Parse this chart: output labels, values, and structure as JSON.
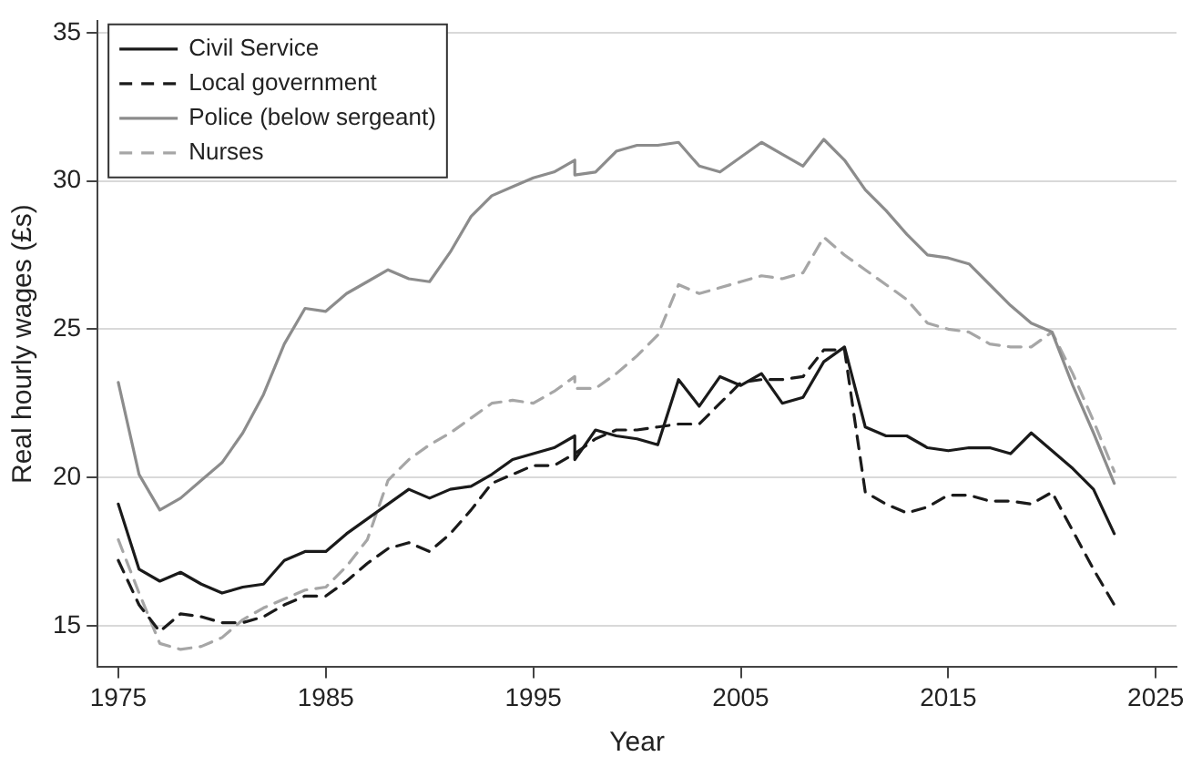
{
  "chart_data": {
    "type": "line",
    "xlabel": "Year",
    "ylabel": "Real hourly wages (£s)",
    "xlim": [
      1974,
      2026
    ],
    "ylim": [
      13.6,
      35.4
    ],
    "xticks": [
      1975,
      1985,
      1995,
      2005,
      2015,
      2025
    ],
    "yticks": [
      15,
      20,
      25,
      30,
      35
    ],
    "grid": "y",
    "legend": "top left",
    "marker": "none",
    "series": [
      {
        "name": "Civil Service",
        "color": "#1a1a1a",
        "line_style": "solid",
        "x": [
          1975,
          1976,
          1977,
          1978,
          1979,
          1980,
          1981,
          1982,
          1983,
          1984,
          1985,
          1986,
          1987,
          1988,
          1989,
          1990,
          1991,
          1992,
          1993,
          1994,
          1995,
          1996,
          1997,
          1997,
          1998,
          1999,
          2000,
          2001,
          2002,
          2003,
          2004,
          2005,
          2006,
          2007,
          2008,
          2009,
          2010,
          2011,
          2012,
          2013,
          2014,
          2015,
          2016,
          2017,
          2018,
          2019,
          2020,
          2021,
          2022,
          2023
        ],
        "values": [
          19.1,
          16.9,
          16.5,
          16.8,
          16.4,
          16.1,
          16.3,
          16.4,
          17.2,
          17.5,
          17.5,
          18.1,
          18.6,
          19.1,
          19.6,
          19.3,
          19.6,
          19.7,
          20.1,
          20.6,
          20.8,
          21.0,
          21.4,
          20.6,
          21.6,
          21.4,
          21.3,
          21.1,
          23.3,
          22.4,
          23.4,
          23.1,
          23.5,
          22.5,
          22.7,
          23.9,
          24.4,
          21.7,
          21.4,
          21.4,
          21.0,
          20.9,
          21.0,
          21.0,
          20.8,
          21.5,
          20.9,
          20.3,
          19.6,
          18.1
        ]
      },
      {
        "name": "Local government",
        "color": "#1a1a1a",
        "line_style": "dashed",
        "x": [
          1975,
          1976,
          1977,
          1978,
          1979,
          1980,
          1981,
          1982,
          1983,
          1984,
          1985,
          1986,
          1987,
          1988,
          1989,
          1990,
          1991,
          1992,
          1993,
          1994,
          1995,
          1996,
          1997,
          1998,
          1999,
          2000,
          2001,
          2002,
          2003,
          2004,
          2005,
          2006,
          2007,
          2008,
          2009,
          2010,
          2011,
          2012,
          2013,
          2014,
          2015,
          2016,
          2017,
          2018,
          2019,
          2020,
          2021,
          2022,
          2023
        ],
        "values": [
          17.2,
          15.7,
          14.8,
          15.4,
          15.3,
          15.1,
          15.1,
          15.3,
          15.7,
          16.0,
          16.0,
          16.5,
          17.1,
          17.6,
          17.8,
          17.5,
          18.1,
          18.9,
          19.8,
          20.1,
          20.4,
          20.4,
          20.8,
          21.3,
          21.6,
          21.6,
          21.7,
          21.8,
          21.8,
          22.5,
          23.2,
          23.3,
          23.3,
          23.4,
          24.3,
          24.3,
          19.5,
          19.1,
          18.8,
          19.0,
          19.4,
          19.4,
          19.2,
          19.2,
          19.1,
          19.5,
          18.2,
          16.9,
          15.7
        ]
      },
      {
        "name": "Police (below sergeant)",
        "color": "#8c8c8c",
        "line_style": "solid",
        "x": [
          1975,
          1976,
          1977,
          1978,
          1979,
          1980,
          1981,
          1982,
          1983,
          1984,
          1985,
          1986,
          1987,
          1988,
          1989,
          1990,
          1991,
          1992,
          1993,
          1994,
          1995,
          1996,
          1997,
          1997,
          1998,
          1999,
          2000,
          2001,
          2002,
          2003,
          2004,
          2005,
          2006,
          2007,
          2008,
          2009,
          2010,
          2011,
          2012,
          2013,
          2014,
          2015,
          2016,
          2017,
          2018,
          2019,
          2020,
          2021,
          2022,
          2023
        ],
        "values": [
          23.2,
          20.1,
          18.9,
          19.3,
          19.9,
          20.5,
          21.5,
          22.8,
          24.5,
          25.7,
          25.6,
          26.2,
          26.6,
          27.0,
          26.7,
          26.6,
          27.6,
          28.8,
          29.5,
          29.8,
          30.1,
          30.3,
          30.7,
          30.2,
          30.3,
          31.0,
          31.2,
          31.2,
          31.3,
          30.5,
          30.3,
          30.8,
          31.3,
          30.9,
          30.5,
          31.4,
          30.7,
          29.7,
          29.0,
          28.2,
          27.5,
          27.4,
          27.2,
          26.5,
          25.8,
          25.2,
          24.9,
          23.1,
          21.5,
          19.8
        ]
      },
      {
        "name": "Nurses",
        "color": "#a6a6a6",
        "line_style": "dashed",
        "x": [
          1975,
          1976,
          1977,
          1978,
          1979,
          1980,
          1981,
          1982,
          1983,
          1984,
          1985,
          1986,
          1987,
          1988,
          1989,
          1990,
          1991,
          1992,
          1993,
          1994,
          1995,
          1996,
          1997,
          1997,
          1998,
          1999,
          2000,
          2001,
          2002,
          2003,
          2004,
          2005,
          2006,
          2007,
          2008,
          2009,
          2010,
          2011,
          2012,
          2013,
          2014,
          2015,
          2016,
          2017,
          2018,
          2019,
          2020,
          2021,
          2022,
          2023
        ],
        "values": [
          17.9,
          16.1,
          14.4,
          14.2,
          14.3,
          14.6,
          15.2,
          15.6,
          15.9,
          16.2,
          16.3,
          17.0,
          17.9,
          19.9,
          20.6,
          21.1,
          21.5,
          22.0,
          22.5,
          22.6,
          22.5,
          22.9,
          23.4,
          23.0,
          23.0,
          23.5,
          24.1,
          24.8,
          26.5,
          26.2,
          26.4,
          26.6,
          26.8,
          26.7,
          26.9,
          28.1,
          27.5,
          27.0,
          26.5,
          26.0,
          25.2,
          25.0,
          24.9,
          24.5,
          24.4,
          24.4,
          24.9,
          23.5,
          21.9,
          20.2
        ]
      }
    ]
  }
}
